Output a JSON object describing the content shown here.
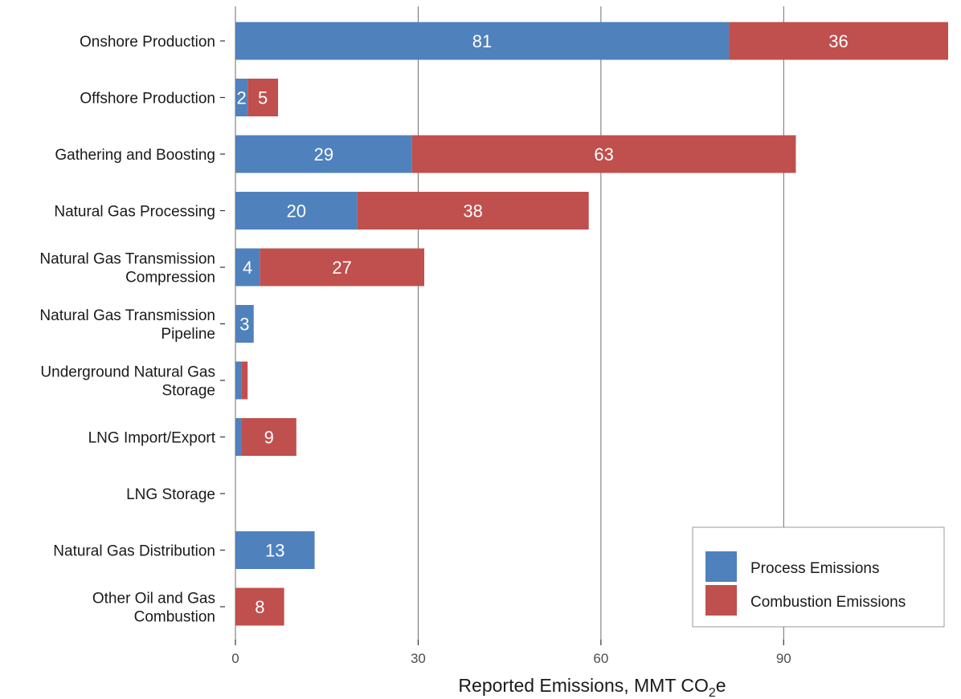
{
  "chart_data": {
    "type": "bar",
    "orientation": "horizontal",
    "stacked": true,
    "categories": [
      [
        "Onshore Production"
      ],
      [
        "Offshore Production"
      ],
      [
        "Gathering and Boosting"
      ],
      [
        "Natural Gas Processing"
      ],
      [
        "Natural Gas Transmission",
        "Compression"
      ],
      [
        "Natural Gas Transmission",
        "Pipeline"
      ],
      [
        "Underground Natural Gas",
        "Storage"
      ],
      [
        "LNG Import/Export"
      ],
      [
        "LNG Storage"
      ],
      [
        "Natural Gas Distribution"
      ],
      [
        "Other Oil and Gas",
        "Combustion"
      ]
    ],
    "series": [
      {
        "name": "Process Emissions",
        "color": "#4f81bd",
        "values": [
          81,
          2,
          29,
          20,
          4,
          3,
          1,
          1,
          0,
          13,
          0
        ],
        "labels": [
          "81",
          "2",
          "29",
          "20",
          "4",
          "3",
          "",
          "",
          "",
          "13",
          ""
        ]
      },
      {
        "name": "Combustion Emissions",
        "color": "#c0504d",
        "values": [
          36,
          5,
          63,
          38,
          27,
          0,
          1,
          9,
          0,
          0,
          8
        ],
        "labels": [
          "36",
          "5",
          "63",
          "38",
          "27",
          "",
          "",
          "9",
          "",
          "",
          "8"
        ]
      }
    ],
    "xlabel": "Reported Emissions, MMT CO",
    "xlabel_sub": "2",
    "xlabel_suffix": "e",
    "xlim": [
      0,
      117
    ],
    "xticks": [
      0,
      30,
      60,
      90
    ],
    "grid": "vertical major",
    "legend_position": "bottom-right"
  }
}
